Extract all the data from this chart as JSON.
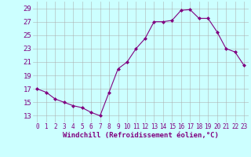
{
  "x": [
    0,
    1,
    2,
    3,
    4,
    5,
    6,
    7,
    8,
    9,
    10,
    11,
    12,
    13,
    14,
    15,
    16,
    17,
    18,
    19,
    20,
    21,
    22,
    23
  ],
  "y": [
    17.0,
    16.5,
    15.5,
    15.0,
    14.5,
    14.2,
    13.5,
    13.0,
    16.5,
    20.0,
    21.0,
    23.0,
    24.5,
    27.0,
    27.0,
    27.2,
    28.7,
    28.8,
    27.5,
    27.5,
    25.5,
    23.0,
    22.5,
    20.5
  ],
  "xlabel": "Windchill (Refroidissement éolien,°C)",
  "ylim": [
    12,
    30
  ],
  "xlim": [
    -0.5,
    23.5
  ],
  "yticks": [
    13,
    15,
    17,
    19,
    21,
    23,
    25,
    27,
    29
  ],
  "xticks": [
    0,
    1,
    2,
    3,
    4,
    5,
    6,
    7,
    8,
    9,
    10,
    11,
    12,
    13,
    14,
    15,
    16,
    17,
    18,
    19,
    20,
    21,
    22,
    23
  ],
  "line_color": "#800080",
  "marker": "D",
  "marker_size": 2.0,
  "bg_color": "#ccffff",
  "grid_color": "#aaaaaa",
  "xlabel_color": "#800080",
  "tick_color": "#800080",
  "font_family": "monospace",
  "xlabel_fontsize": 6.5,
  "ytick_fontsize": 6.5,
  "xtick_fontsize": 5.5
}
